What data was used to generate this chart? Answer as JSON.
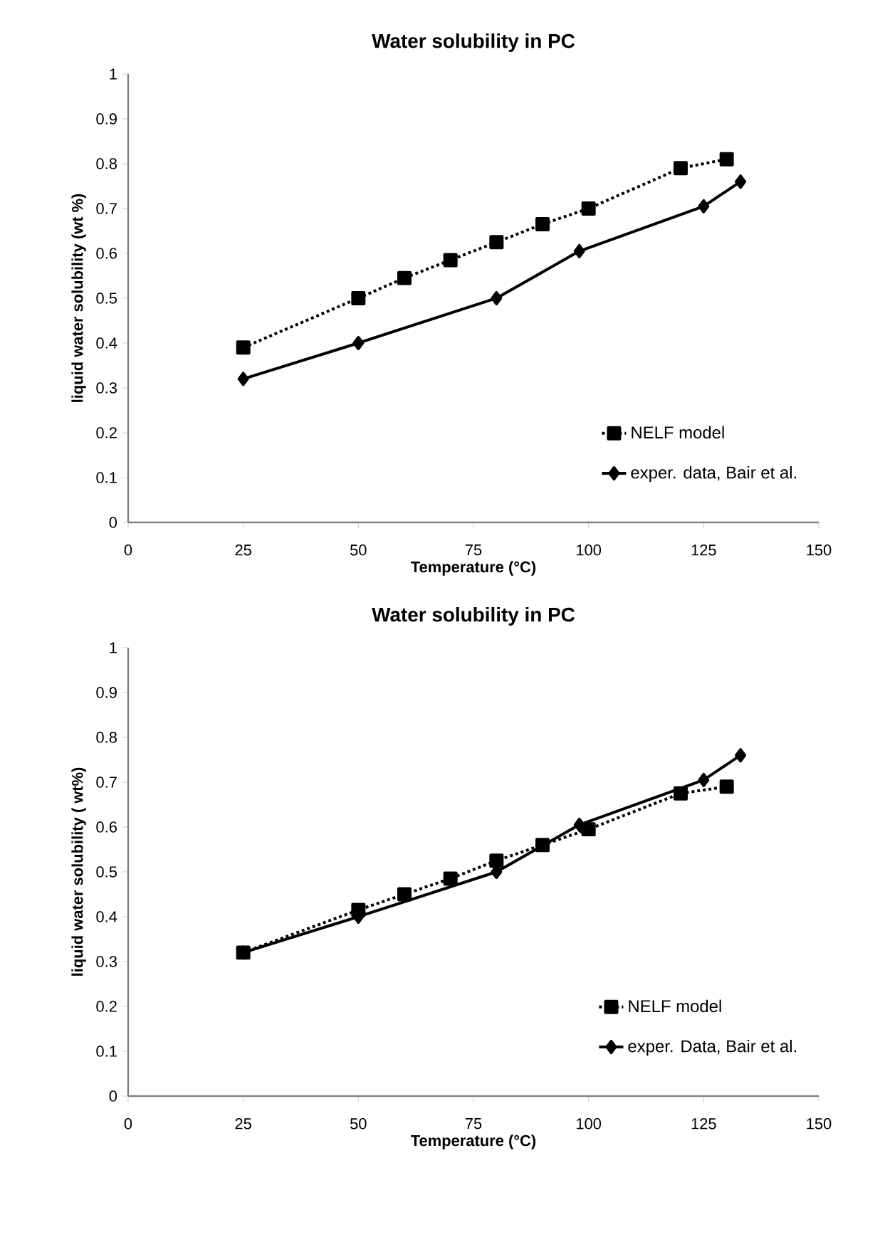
{
  "chart_data": [
    {
      "type": "line",
      "title": "Water solubility in PC",
      "xlabel": "Temperature (°C)",
      "ylabel": "liquid water solubility (wt %)",
      "xlim": [
        0,
        150
      ],
      "ylim": [
        0,
        1
      ],
      "xticks": [
        0,
        25,
        50,
        75,
        100,
        125,
        150
      ],
      "yticks": [
        0,
        0.1,
        0.2,
        0.3,
        0.4,
        0.5,
        0.6,
        0.7,
        0.8,
        0.9,
        1
      ],
      "legend": "bottom right",
      "series": [
        {
          "name": "NELF model",
          "color": "#000000",
          "marker": "square",
          "line_style": "dotted",
          "x": [
            25,
            50,
            60,
            70,
            80,
            90,
            100,
            120,
            130
          ],
          "values": [
            0.39,
            0.5,
            0.545,
            0.585,
            0.625,
            0.665,
            0.7,
            0.79,
            0.81
          ]
        },
        {
          "name": "exper. data, Bair et al.",
          "color": "#000000",
          "marker": "diamond",
          "line_style": "solid",
          "x": [
            25,
            50,
            80,
            98,
            125,
            133
          ],
          "values": [
            0.32,
            0.4,
            0.5,
            0.605,
            0.705,
            0.76
          ]
        }
      ]
    },
    {
      "type": "line",
      "title": "Water solubility in PC",
      "xlabel": "Temperature (°C)",
      "ylabel": "liquid water solubility ( wt%)",
      "xlim": [
        0,
        150
      ],
      "ylim": [
        0,
        1
      ],
      "xticks": [
        0,
        25,
        50,
        75,
        100,
        125,
        150
      ],
      "yticks": [
        0,
        0.1,
        0.2,
        0.3,
        0.4,
        0.5,
        0.6,
        0.7,
        0.8,
        0.9,
        1
      ],
      "legend": "bottom right",
      "series": [
        {
          "name": "NELF model",
          "color": "#000000",
          "marker": "square",
          "line_style": "dotted",
          "x": [
            25,
            50,
            60,
            70,
            80,
            90,
            100,
            120,
            130
          ],
          "values": [
            0.32,
            0.415,
            0.45,
            0.485,
            0.525,
            0.56,
            0.595,
            0.675,
            0.69
          ]
        },
        {
          "name": "exper. Data, Bair et al.",
          "color": "#000000",
          "marker": "diamond",
          "line_style": "solid",
          "x": [
            25,
            50,
            80,
            98,
            125,
            133
          ],
          "values": [
            0.32,
            0.4,
            0.5,
            0.605,
            0.705,
            0.76
          ]
        }
      ]
    }
  ]
}
